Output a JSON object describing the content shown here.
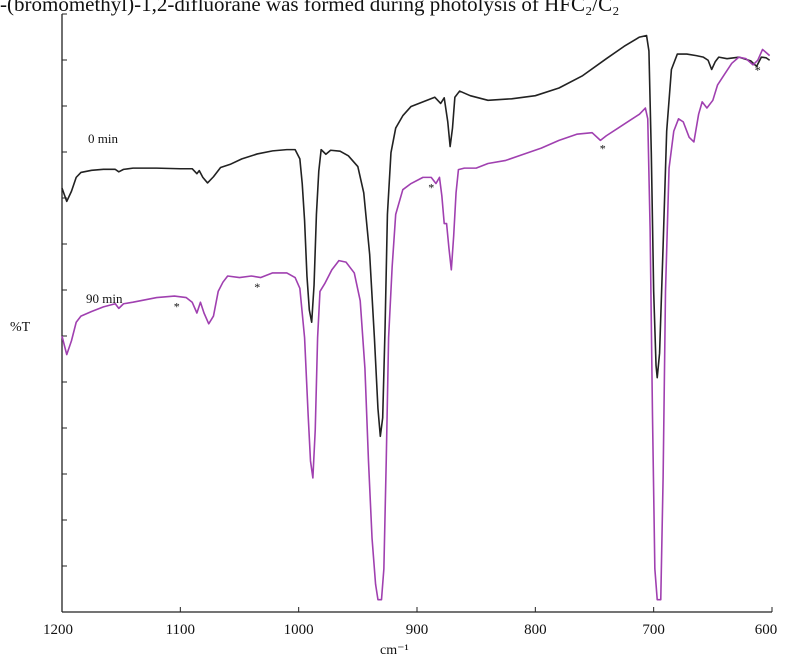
{
  "caption": "-(bromomethyl)-1,2-difluorane was formed during photolysis of HFC₂/C₂",
  "chart_data": {
    "type": "line",
    "title": "",
    "xlabel": "cm⁻¹",
    "ylabel": "%T",
    "xlim": [
      1200,
      600
    ],
    "x_direction": "reversed",
    "grid": false,
    "x_ticks": [
      "1200",
      "1100",
      "1000",
      "900",
      "800",
      "700",
      "600"
    ],
    "series": [
      {
        "name": "0 min",
        "color": "#222222",
        "points": [
          [
            1200,
            1.35
          ],
          [
            1196,
            0.92
          ],
          [
            1192,
            1.25
          ],
          [
            1188,
            1.7
          ],
          [
            1184,
            1.86
          ],
          [
            1175,
            1.93
          ],
          [
            1165,
            1.96
          ],
          [
            1155,
            1.96
          ],
          [
            1152,
            1.88
          ],
          [
            1148,
            1.96
          ],
          [
            1140,
            2.0
          ],
          [
            1120,
            2.0
          ],
          [
            1100,
            1.98
          ],
          [
            1090,
            1.98
          ],
          [
            1086,
            1.82
          ],
          [
            1084,
            1.92
          ],
          [
            1081,
            1.7
          ],
          [
            1077,
            1.52
          ],
          [
            1072,
            1.72
          ],
          [
            1066,
            2.02
          ],
          [
            1058,
            2.12
          ],
          [
            1048,
            2.3
          ],
          [
            1035,
            2.46
          ],
          [
            1022,
            2.56
          ],
          [
            1010,
            2.6
          ],
          [
            1003,
            2.6
          ],
          [
            999,
            2.3
          ],
          [
            997,
            1.5
          ],
          [
            995,
            0.3
          ],
          [
            993,
            -1.5
          ],
          [
            991,
            -2.6
          ],
          [
            989,
            -3.0
          ],
          [
            987,
            -1.8
          ],
          [
            985,
            0.5
          ],
          [
            983,
            1.9
          ],
          [
            981,
            2.6
          ],
          [
            977,
            2.45
          ],
          [
            973,
            2.58
          ],
          [
            965,
            2.55
          ],
          [
            958,
            2.4
          ],
          [
            950,
            2.05
          ],
          [
            945,
            1.2
          ],
          [
            940,
            -0.8
          ],
          [
            936,
            -3.5
          ],
          [
            933,
            -5.8
          ],
          [
            931,
            -6.7
          ],
          [
            929,
            -6.1
          ],
          [
            927,
            -3.2
          ],
          [
            925,
            0.5
          ],
          [
            922,
            2.5
          ],
          [
            918,
            3.3
          ],
          [
            912,
            3.7
          ],
          [
            905,
            4.0
          ],
          [
            895,
            4.15
          ],
          [
            885,
            4.3
          ],
          [
            880,
            4.1
          ],
          [
            877,
            4.28
          ],
          [
            874,
            3.5
          ],
          [
            872,
            2.7
          ],
          [
            870,
            3.3
          ],
          [
            868,
            4.3
          ],
          [
            864,
            4.5
          ],
          [
            855,
            4.35
          ],
          [
            840,
            4.2
          ],
          [
            820,
            4.25
          ],
          [
            800,
            4.35
          ],
          [
            780,
            4.6
          ],
          [
            760,
            5.0
          ],
          [
            740,
            5.55
          ],
          [
            725,
            5.95
          ],
          [
            712,
            6.25
          ],
          [
            706,
            6.3
          ],
          [
            704,
            5.8
          ],
          [
            702,
            2.5
          ],
          [
            700,
            -2.0
          ],
          [
            698,
            -4.4
          ],
          [
            697,
            -4.8
          ],
          [
            695,
            -4.0
          ],
          [
            692,
            -0.5
          ],
          [
            689,
            3.2
          ],
          [
            685,
            5.2
          ],
          [
            680,
            5.7
          ],
          [
            672,
            5.7
          ],
          [
            664,
            5.65
          ],
          [
            658,
            5.6
          ],
          [
            654,
            5.5
          ],
          [
            651,
            5.2
          ],
          [
            648,
            5.45
          ],
          [
            645,
            5.6
          ],
          [
            638,
            5.55
          ],
          [
            628,
            5.6
          ],
          [
            618,
            5.48
          ],
          [
            613,
            5.3
          ],
          [
            609,
            5.6
          ],
          [
            605,
            5.58
          ],
          [
            602,
            5.5
          ]
        ]
      },
      {
        "name": "90 min",
        "color": "#a040b0",
        "points": [
          [
            1200,
            -3.45
          ],
          [
            1196,
            -4.05
          ],
          [
            1192,
            -3.6
          ],
          [
            1188,
            -3.0
          ],
          [
            1184,
            -2.8
          ],
          [
            1175,
            -2.65
          ],
          [
            1165,
            -2.5
          ],
          [
            1155,
            -2.4
          ],
          [
            1152,
            -2.55
          ],
          [
            1148,
            -2.4
          ],
          [
            1140,
            -2.35
          ],
          [
            1120,
            -2.2
          ],
          [
            1105,
            -2.15
          ],
          [
            1095,
            -2.2
          ],
          [
            1090,
            -2.35
          ],
          [
            1086,
            -2.7
          ],
          [
            1083,
            -2.35
          ],
          [
            1080,
            -2.7
          ],
          [
            1076,
            -3.05
          ],
          [
            1072,
            -2.8
          ],
          [
            1068,
            -2.0
          ],
          [
            1064,
            -1.7
          ],
          [
            1060,
            -1.5
          ],
          [
            1050,
            -1.55
          ],
          [
            1040,
            -1.5
          ],
          [
            1032,
            -1.55
          ],
          [
            1022,
            -1.4
          ],
          [
            1010,
            -1.4
          ],
          [
            1003,
            -1.55
          ],
          [
            999,
            -1.9
          ],
          [
            995,
            -3.5
          ],
          [
            992,
            -6.0
          ],
          [
            990,
            -7.5
          ],
          [
            988,
            -8.05
          ],
          [
            986,
            -6.5
          ],
          [
            984,
            -3.5
          ],
          [
            982,
            -2.0
          ],
          [
            978,
            -1.75
          ],
          [
            972,
            -1.3
          ],
          [
            966,
            -1.0
          ],
          [
            960,
            -1.05
          ],
          [
            953,
            -1.4
          ],
          [
            948,
            -2.3
          ],
          [
            944,
            -4.5
          ],
          [
            941,
            -7.5
          ],
          [
            938,
            -10.0
          ],
          [
            935,
            -11.5
          ],
          [
            933,
            -12.0
          ],
          [
            930,
            -12.0
          ],
          [
            928,
            -11.0
          ],
          [
            926,
            -7.5
          ],
          [
            924,
            -3.5
          ],
          [
            921,
            -1.2
          ],
          [
            918,
            0.5
          ],
          [
            912,
            1.3
          ],
          [
            905,
            1.5
          ],
          [
            895,
            1.7
          ],
          [
            888,
            1.7
          ],
          [
            884,
            1.5
          ],
          [
            881,
            1.7
          ],
          [
            879,
            1.1
          ],
          [
            877,
            0.2
          ],
          [
            875,
            0.2
          ],
          [
            873,
            -0.6
          ],
          [
            871,
            -1.3
          ],
          [
            869,
            -0.2
          ],
          [
            867,
            1.2
          ],
          [
            865,
            1.95
          ],
          [
            860,
            2.0
          ],
          [
            850,
            2.0
          ],
          [
            840,
            2.15
          ],
          [
            825,
            2.25
          ],
          [
            810,
            2.45
          ],
          [
            795,
            2.65
          ],
          [
            780,
            2.9
          ],
          [
            765,
            3.1
          ],
          [
            752,
            3.15
          ],
          [
            745,
            2.9
          ],
          [
            740,
            3.05
          ],
          [
            730,
            3.3
          ],
          [
            720,
            3.55
          ],
          [
            712,
            3.75
          ],
          [
            707,
            3.95
          ],
          [
            705,
            3.6
          ],
          [
            703,
            0.0
          ],
          [
            701,
            -6.0
          ],
          [
            699,
            -11.0
          ],
          [
            697,
            -12.0
          ],
          [
            694,
            -12.0
          ],
          [
            692,
            -8.0
          ],
          [
            690,
            -2.0
          ],
          [
            687,
            2.0
          ],
          [
            683,
            3.2
          ],
          [
            679,
            3.6
          ],
          [
            675,
            3.5
          ],
          [
            670,
            3.0
          ],
          [
            666,
            2.85
          ],
          [
            662,
            3.75
          ],
          [
            659,
            4.15
          ],
          [
            655,
            3.95
          ],
          [
            650,
            4.2
          ],
          [
            646,
            4.7
          ],
          [
            640,
            5.05
          ],
          [
            634,
            5.4
          ],
          [
            628,
            5.6
          ],
          [
            622,
            5.55
          ],
          [
            616,
            5.35
          ],
          [
            612,
            5.5
          ],
          [
            608,
            5.85
          ],
          [
            605,
            5.75
          ],
          [
            602,
            5.65
          ]
        ]
      }
    ],
    "annotations": [
      {
        "text": "*",
        "x": 1103,
        "series": "90 min"
      },
      {
        "text": "*",
        "x": 1035,
        "series": "90 min"
      },
      {
        "text": "*",
        "x": 888,
        "series": "90 min"
      },
      {
        "text": "*",
        "x": 743,
        "series": "90 min"
      },
      {
        "text": "*",
        "x": 612,
        "series": "90 min"
      }
    ]
  }
}
